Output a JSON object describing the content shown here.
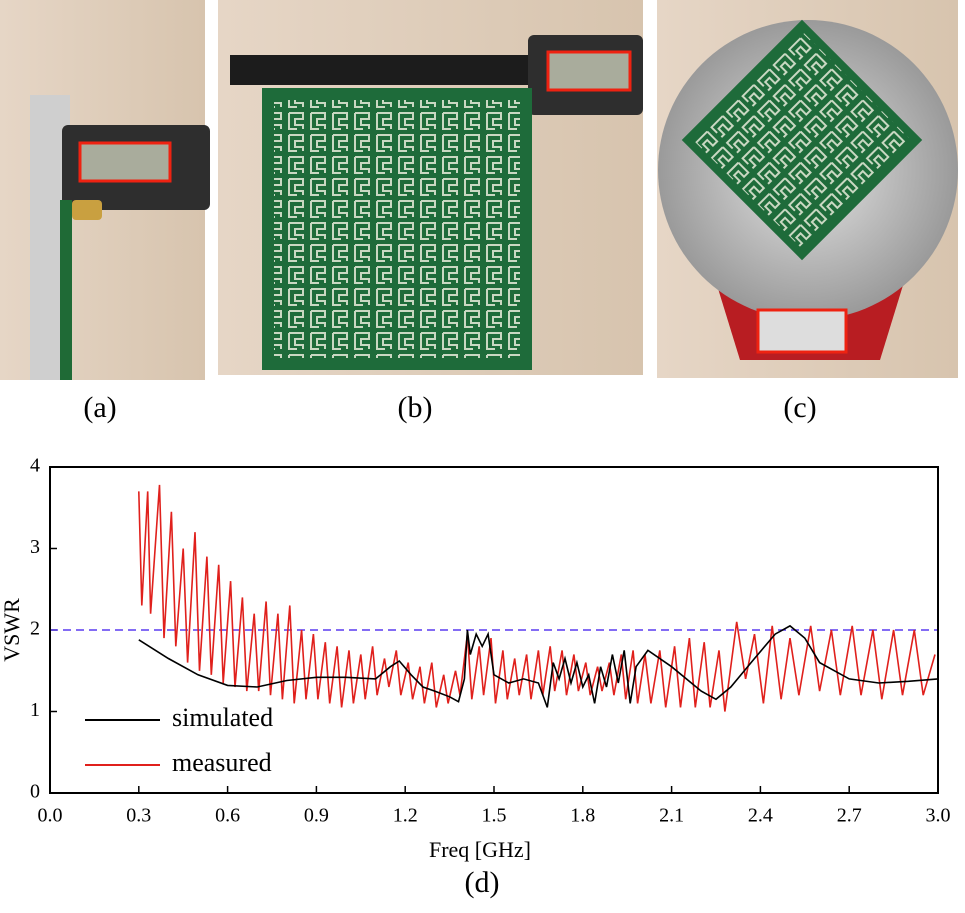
{
  "panel_labels": [
    "(a)",
    "(b)",
    "(c)",
    "(d)"
  ],
  "chart_data": {
    "type": "line",
    "xlabel": "Freq [GHz]",
    "ylabel": "VSWR",
    "xlim": [
      0,
      3
    ],
    "ylim": [
      0,
      4
    ],
    "xticks": [
      {
        "value": 0,
        "label": "0.0"
      },
      0.3,
      0.6,
      0.9,
      1.2,
      1.5,
      1.8,
      2.1,
      2.4,
      2.7,
      {
        "value": 3,
        "label": "3.0"
      }
    ],
    "yticks": [
      0,
      1,
      2,
      3,
      4
    ],
    "hline": {
      "value": 2,
      "color": "#5a3cf0"
    },
    "legend": "lower left",
    "series": [
      {
        "name": "simulated",
        "color": "#000000",
        "x": [
          0.3,
          0.4,
          0.5,
          0.6,
          0.7,
          0.8,
          0.9,
          1.0,
          1.1,
          1.15,
          1.18,
          1.22,
          1.26,
          1.3,
          1.35,
          1.38,
          1.4,
          1.41,
          1.42,
          1.44,
          1.46,
          1.48,
          1.5,
          1.55,
          1.6,
          1.65,
          1.68,
          1.7,
          1.72,
          1.74,
          1.76,
          1.78,
          1.8,
          1.82,
          1.84,
          1.86,
          1.88,
          1.9,
          1.92,
          1.94,
          1.96,
          1.98,
          2.02,
          2.1,
          2.2,
          2.25,
          2.3,
          2.38,
          2.45,
          2.5,
          2.55,
          2.6,
          2.7,
          2.8,
          2.9,
          3.0
        ],
        "values": [
          1.88,
          1.65,
          1.45,
          1.32,
          1.3,
          1.38,
          1.42,
          1.42,
          1.4,
          1.55,
          1.62,
          1.45,
          1.3,
          1.25,
          1.18,
          1.12,
          1.4,
          2.0,
          1.7,
          1.95,
          1.8,
          1.95,
          1.45,
          1.35,
          1.4,
          1.35,
          1.05,
          1.6,
          1.4,
          1.65,
          1.35,
          1.6,
          1.3,
          1.45,
          1.1,
          1.55,
          1.3,
          1.7,
          1.35,
          1.75,
          1.1,
          1.55,
          1.75,
          1.55,
          1.25,
          1.15,
          1.3,
          1.65,
          1.95,
          2.05,
          1.9,
          1.6,
          1.4,
          1.35,
          1.37,
          1.4
        ]
      },
      {
        "name": "measured",
        "color": "#e0201c",
        "x": [
          0.3,
          0.31,
          0.33,
          0.34,
          0.37,
          0.385,
          0.41,
          0.425,
          0.45,
          0.465,
          0.49,
          0.505,
          0.53,
          0.545,
          0.57,
          0.585,
          0.61,
          0.625,
          0.65,
          0.665,
          0.69,
          0.705,
          0.73,
          0.745,
          0.77,
          0.785,
          0.81,
          0.825,
          0.85,
          0.865,
          0.89,
          0.905,
          0.93,
          0.945,
          0.97,
          0.985,
          1.01,
          1.025,
          1.05,
          1.065,
          1.09,
          1.105,
          1.13,
          1.145,
          1.17,
          1.185,
          1.21,
          1.225,
          1.25,
          1.265,
          1.29,
          1.305,
          1.33,
          1.345,
          1.37,
          1.385,
          1.41,
          1.425,
          1.45,
          1.465,
          1.49,
          1.505,
          1.53,
          1.545,
          1.57,
          1.585,
          1.61,
          1.625,
          1.65,
          1.665,
          1.69,
          1.705,
          1.73,
          1.745,
          1.77,
          1.785,
          1.81,
          1.825,
          1.85,
          1.865,
          1.89,
          1.905,
          1.93,
          1.945,
          1.97,
          1.985,
          2.01,
          2.03,
          2.06,
          2.08,
          2.11,
          2.13,
          2.16,
          2.18,
          2.21,
          2.23,
          2.26,
          2.28,
          2.32,
          2.35,
          2.38,
          2.41,
          2.44,
          2.47,
          2.5,
          2.53,
          2.57,
          2.6,
          2.64,
          2.67,
          2.71,
          2.74,
          2.78,
          2.81,
          2.85,
          2.88,
          2.92,
          2.95,
          2.99
        ],
        "values": [
          3.7,
          2.3,
          3.7,
          2.2,
          3.78,
          1.9,
          3.45,
          1.8,
          3.0,
          1.6,
          3.2,
          1.5,
          2.9,
          1.45,
          2.8,
          1.35,
          2.6,
          1.3,
          2.4,
          1.25,
          2.2,
          1.25,
          2.35,
          1.2,
          2.2,
          1.15,
          2.3,
          1.1,
          2.0,
          1.15,
          1.95,
          1.15,
          1.85,
          1.1,
          1.8,
          1.05,
          1.75,
          1.1,
          1.7,
          1.15,
          1.8,
          1.2,
          1.65,
          1.3,
          1.75,
          1.2,
          1.6,
          1.15,
          1.55,
          1.1,
          1.6,
          1.05,
          1.45,
          1.1,
          1.5,
          1.2,
          1.95,
          1.15,
          1.8,
          1.2,
          1.9,
          1.1,
          1.75,
          1.15,
          1.65,
          1.2,
          1.7,
          1.15,
          1.75,
          1.2,
          1.8,
          1.25,
          1.75,
          1.2,
          1.7,
          1.25,
          1.6,
          1.2,
          1.55,
          1.25,
          1.6,
          1.2,
          1.7,
          1.15,
          1.75,
          1.1,
          1.7,
          1.1,
          1.75,
          1.05,
          1.8,
          1.05,
          1.9,
          1.05,
          1.85,
          1.05,
          1.75,
          1.0,
          2.1,
          1.4,
          1.95,
          1.1,
          2.05,
          1.15,
          1.9,
          1.2,
          2.05,
          1.25,
          2.0,
          1.2,
          2.05,
          1.2,
          2.0,
          1.15,
          2.0,
          1.2,
          2.0,
          1.2,
          1.7
        ]
      }
    ]
  }
}
